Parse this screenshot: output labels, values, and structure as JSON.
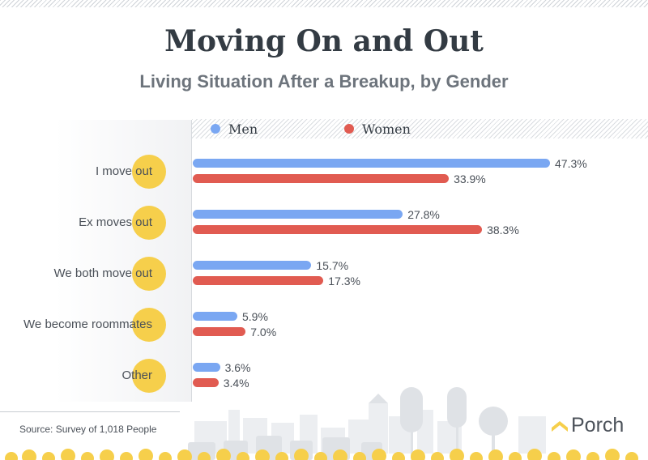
{
  "title": "Moving On and Out",
  "subtitle": "Living Situation After a Breakup, by Gender",
  "source": "Source: Survey of 1,018 People",
  "brand": "Porch",
  "colors": {
    "men": "#7aa7f2",
    "women": "#e15b51",
    "highlight_circle": "#f6cf4b",
    "title": "#333b43"
  },
  "chart_data": {
    "type": "bar",
    "orientation": "horizontal",
    "categories": [
      "I move out",
      "Ex moves out",
      "We both move out",
      "We become roommates",
      "Other"
    ],
    "series": [
      {
        "name": "Men",
        "values": [
          47.3,
          27.8,
          15.7,
          5.9,
          3.6
        ],
        "labels": [
          "47.3%",
          "27.8%",
          "15.7%",
          "5.9%",
          "3.6%"
        ]
      },
      {
        "name": "Women",
        "values": [
          33.9,
          38.3,
          17.3,
          7.0,
          3.4
        ],
        "labels": [
          "33.9%",
          "38.3%",
          "17.3%",
          "7.0%",
          "3.4%"
        ]
      }
    ],
    "title": "Moving On and Out",
    "subtitle": "Living Situation After a Breakup, by Gender",
    "xlim": [
      0,
      53
    ],
    "value_unit": "%",
    "grid": false,
    "legend_position": "top"
  }
}
